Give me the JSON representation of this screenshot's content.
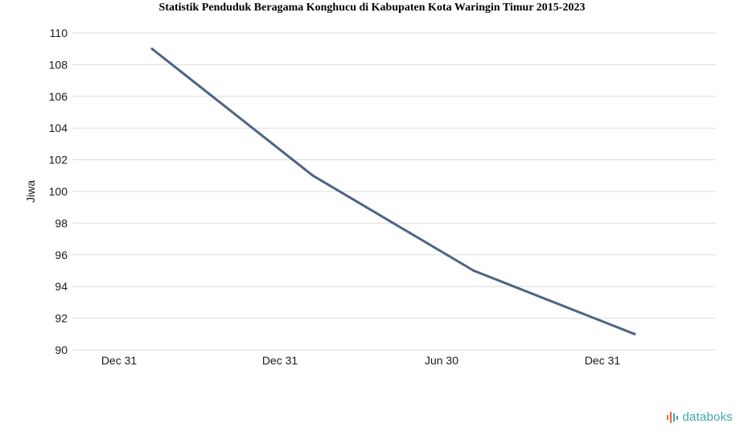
{
  "chart_data": {
    "type": "line",
    "title": "Statistik Penduduk Beragama Konghucu di Kabupaten Kota Waringin Timur 2015-2023",
    "xlabel": "",
    "ylabel": "Jiwa",
    "x_tick_labels": [
      "Dec 31",
      "Dec 31",
      "Jun 30",
      "Dec 31"
    ],
    "yticks": [
      90,
      92,
      94,
      96,
      98,
      100,
      102,
      104,
      106,
      108,
      110
    ],
    "ylim": [
      90,
      110
    ],
    "grid": true,
    "series": [
      {
        "values": [
          109,
          101,
          95,
          91
        ],
        "color": "#4d6584"
      }
    ]
  },
  "brand": {
    "name": "databoks",
    "icon": "databoks-logo-icon",
    "colors": [
      "#e8643c",
      "#3fa7a1"
    ]
  },
  "colors": {
    "grid": "#dcdcdc",
    "text": "#1a1a1a"
  }
}
